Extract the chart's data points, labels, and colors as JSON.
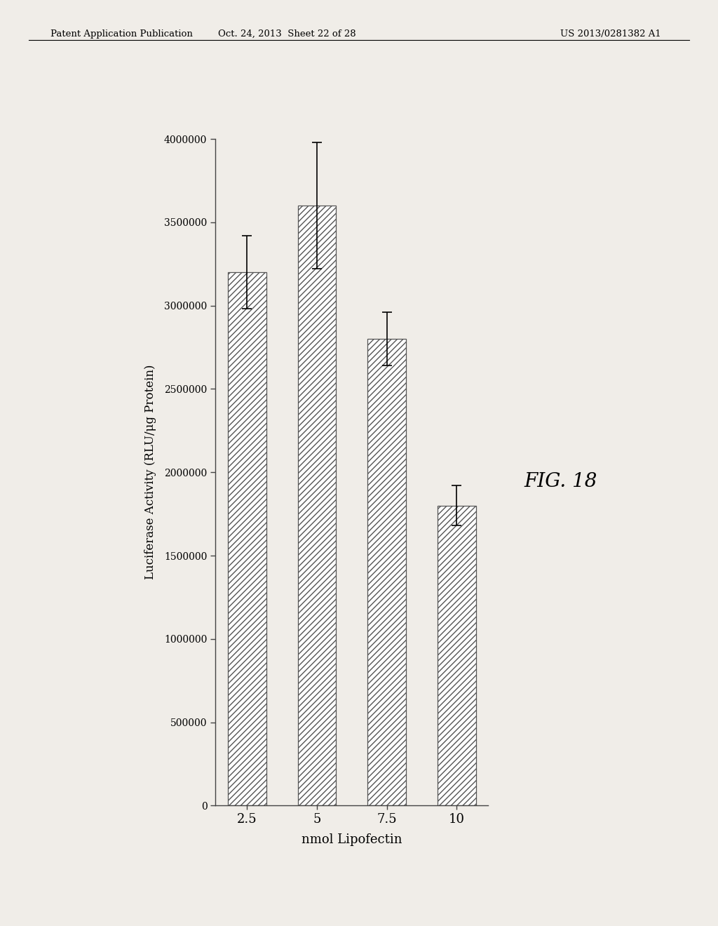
{
  "categories": [
    "2.5",
    "5",
    "7.5",
    "10"
  ],
  "values": [
    3200000,
    3600000,
    2800000,
    1800000
  ],
  "errors": [
    220000,
    380000,
    160000,
    120000
  ],
  "xlabel": "nmol Lipofectin",
  "ylabel": "Luciferase Activity (RLU/μg Protein)",
  "figure_label": "FIG. 18",
  "ylim": [
    0,
    4000000
  ],
  "yticks": [
    0,
    500000,
    1000000,
    1500000,
    2000000,
    2500000,
    3000000,
    3500000,
    4000000
  ],
  "ytick_labels": [
    "0",
    "500000",
    "1000000",
    "1500000",
    "2000000",
    "2500000",
    "3000000",
    "3500000",
    "4000000"
  ],
  "bar_color": "white",
  "hatch_pattern": "////",
  "edge_color": "#555555",
  "background_color": "#f0ede8",
  "patent_header_left": "Patent Application Publication",
  "patent_header_mid": "Oct. 24, 2013  Sheet 22 of 28",
  "patent_header_right": "US 2013/0281382 A1"
}
